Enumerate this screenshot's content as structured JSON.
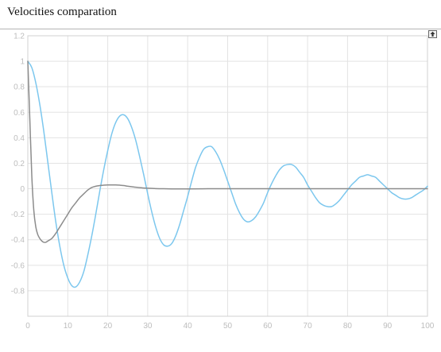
{
  "header": {
    "title": "Velocities comparation"
  },
  "toolbar": {
    "export_icon": "export-icon"
  },
  "colors": {
    "series_blue": "#7cc7ee",
    "series_gray": "#8c8c8c",
    "grid": "#e3e3e3",
    "tick_label": "#bdbdbd"
  },
  "chart_data": {
    "type": "line",
    "title": "",
    "xlabel": "",
    "ylabel": "",
    "xlim": [
      0,
      100
    ],
    "ylim": [
      -1.0,
      1.2
    ],
    "grid": true,
    "legend": "none",
    "x_ticks": [
      0,
      10,
      20,
      30,
      40,
      50,
      60,
      70,
      80,
      90,
      100
    ],
    "x_tick_labels": [
      "0",
      "10",
      "20",
      "30",
      "40",
      "50",
      "60",
      "70",
      "80",
      "90",
      "100"
    ],
    "y_ticks": [
      1.2,
      1,
      0.8,
      0.6,
      0.4,
      0.2,
      0,
      -0.2,
      -0.4,
      -0.6,
      -0.8
    ],
    "y_tick_labels": [
      "1.2",
      "1",
      "0.8",
      "0.6",
      "0.4",
      "0.2",
      "0",
      "-0.2",
      "-0.4",
      "-0.6",
      "-0.8"
    ],
    "series": [
      {
        "color": "#7cc7ee",
        "x": [
          0,
          1,
          2,
          3,
          4,
          5,
          6,
          7,
          8,
          9,
          10,
          11,
          12,
          13,
          14,
          15,
          16,
          17,
          18,
          19,
          20,
          21,
          22,
          23,
          24,
          25,
          26,
          27,
          28,
          29,
          30,
          31,
          32,
          33,
          34,
          35,
          36,
          37,
          38,
          39,
          40,
          41,
          42,
          43,
          44,
          45,
          46,
          47,
          48,
          49,
          50,
          51,
          52,
          53,
          54,
          55,
          56,
          57,
          58,
          59,
          60,
          61,
          62,
          63,
          64,
          65,
          66,
          67,
          68,
          69,
          70,
          71,
          72,
          73,
          74,
          75,
          76,
          77,
          78,
          79,
          80,
          81,
          82,
          83,
          84,
          85,
          86,
          87,
          88,
          89,
          90,
          91,
          92,
          93,
          94,
          95,
          96,
          97,
          98,
          99,
          100
        ],
        "y": [
          1.0,
          0.95,
          0.83,
          0.66,
          0.45,
          0.21,
          -0.03,
          -0.26,
          -0.45,
          -0.6,
          -0.7,
          -0.76,
          -0.77,
          -0.73,
          -0.65,
          -0.52,
          -0.37,
          -0.2,
          -0.02,
          0.15,
          0.3,
          0.43,
          0.52,
          0.57,
          0.58,
          0.55,
          0.48,
          0.38,
          0.25,
          0.11,
          -0.04,
          -0.18,
          -0.3,
          -0.39,
          -0.44,
          -0.45,
          -0.43,
          -0.37,
          -0.28,
          -0.17,
          -0.06,
          0.06,
          0.17,
          0.25,
          0.31,
          0.33,
          0.33,
          0.29,
          0.23,
          0.15,
          0.06,
          -0.03,
          -0.12,
          -0.19,
          -0.24,
          -0.26,
          -0.25,
          -0.22,
          -0.17,
          -0.11,
          -0.03,
          0.04,
          0.1,
          0.15,
          0.18,
          0.19,
          0.19,
          0.17,
          0.13,
          0.09,
          0.03,
          -0.02,
          -0.07,
          -0.11,
          -0.13,
          -0.14,
          -0.14,
          -0.12,
          -0.09,
          -0.05,
          -0.01,
          0.03,
          0.06,
          0.09,
          0.1,
          0.11,
          0.1,
          0.09,
          0.06,
          0.03,
          0.0,
          -0.03,
          -0.05,
          -0.07,
          -0.08,
          -0.08,
          -0.07,
          -0.05,
          -0.03,
          -0.01,
          0.02
        ]
      },
      {
        "color": "#8c8c8c",
        "x": [
          0,
          0.5,
          1,
          1.5,
          2,
          2.5,
          3,
          3.5,
          4,
          4.5,
          5,
          6,
          7,
          8,
          9,
          10,
          11,
          12,
          13,
          14,
          15,
          16,
          17,
          18,
          19,
          20,
          21,
          22,
          23,
          24,
          25,
          26,
          27,
          28,
          29,
          30,
          32,
          34,
          36,
          38,
          40,
          45,
          50,
          55,
          60,
          65,
          70,
          75,
          80,
          85,
          90,
          95,
          100
        ],
        "y": [
          1.0,
          0.55,
          0.1,
          -0.17,
          -0.3,
          -0.36,
          -0.39,
          -0.41,
          -0.42,
          -0.42,
          -0.41,
          -0.39,
          -0.35,
          -0.3,
          -0.25,
          -0.2,
          -0.15,
          -0.11,
          -0.07,
          -0.04,
          -0.01,
          0.01,
          0.02,
          0.025,
          0.028,
          0.03,
          0.03,
          0.03,
          0.028,
          0.025,
          0.02,
          0.016,
          0.012,
          0.009,
          0.006,
          0.004,
          0.001,
          0.0,
          -0.001,
          -0.001,
          -0.001,
          0.0,
          0.0,
          0.0,
          0.0,
          0.0,
          0.0,
          0.0,
          0.0,
          0.0,
          0.0,
          0.0,
          0.0
        ]
      }
    ]
  }
}
